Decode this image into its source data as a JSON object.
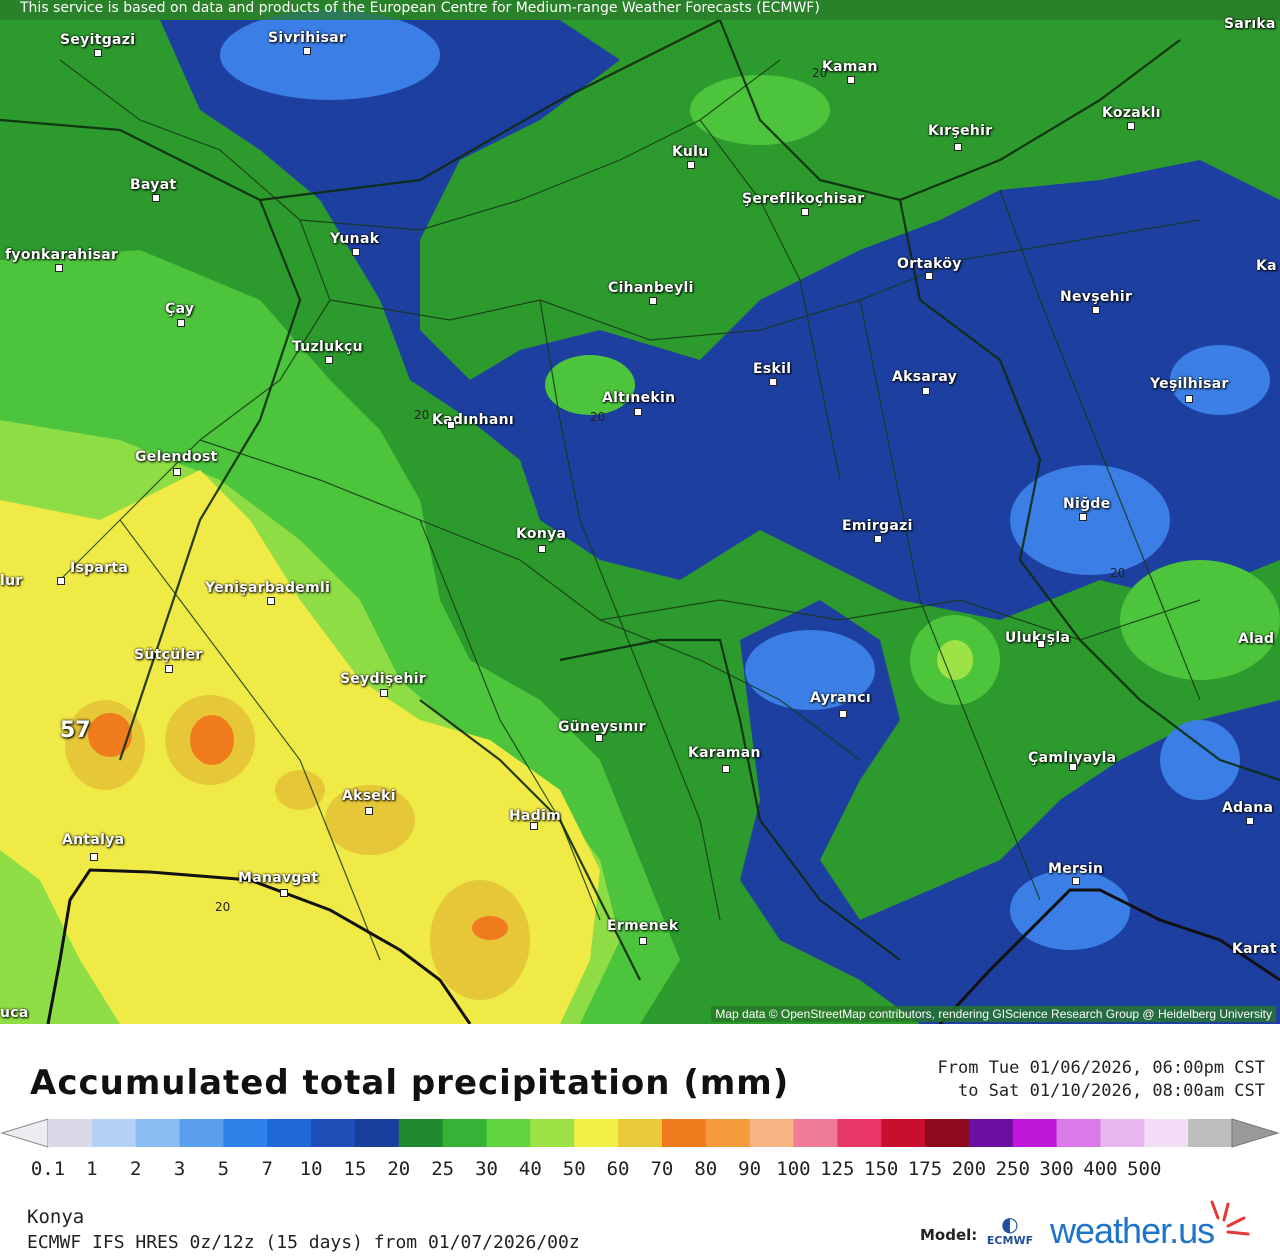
{
  "header": {
    "attribution_top": "This service is based on data and products of the European Centre for Medium-range Weather Forecasts (ECMWF)"
  },
  "map": {
    "attribution_bottom": "Map data © OpenStreetMap contributors, rendering GIScience Research Group @ Heidelberg University",
    "max_value_label": "57",
    "contour_label": "20",
    "cities": [
      {
        "name": "Seyitgazi"
      },
      {
        "name": "Sivrihisar"
      },
      {
        "name": "Kaman"
      },
      {
        "name": "Kozaklı"
      },
      {
        "name": "Kırşehir"
      },
      {
        "name": "Kulu"
      },
      {
        "name": "Bayat"
      },
      {
        "name": "Şereflikoçhisar"
      },
      {
        "name": "Yunak"
      },
      {
        "name": "fyonkarahisar"
      },
      {
        "name": "Ortaköy"
      },
      {
        "name": "Cihanbeyli"
      },
      {
        "name": "Nevşehir"
      },
      {
        "name": "Çay"
      },
      {
        "name": "Tuzlukçu"
      },
      {
        "name": "Eskil"
      },
      {
        "name": "Aksaray"
      },
      {
        "name": "Yeşilhisar"
      },
      {
        "name": "Altınekin"
      },
      {
        "name": "Kadınhanı"
      },
      {
        "name": "Gelendost"
      },
      {
        "name": "Niğde"
      },
      {
        "name": "Konya"
      },
      {
        "name": "Emirgazi"
      },
      {
        "name": "Isparta"
      },
      {
        "name": "Yenişarbademli"
      },
      {
        "name": "Ulukışla"
      },
      {
        "name": "Sütçüler"
      },
      {
        "name": "Seydişehir"
      },
      {
        "name": "Ayrancı"
      },
      {
        "name": "Güneysınır"
      },
      {
        "name": "Karaman"
      },
      {
        "name": "Çamlıyayla"
      },
      {
        "name": "Akseki"
      },
      {
        "name": "Hadim"
      },
      {
        "name": "Antalya"
      },
      {
        "name": "Adana"
      },
      {
        "name": "Manavgat"
      },
      {
        "name": "Mersin"
      },
      {
        "name": "Ermenek"
      },
      {
        "name": "Sarıka"
      },
      {
        "name": "Ka"
      },
      {
        "name": "Alad"
      },
      {
        "name": "Karat"
      },
      {
        "name": "lur"
      },
      {
        "name": "uca"
      }
    ]
  },
  "legend": {
    "title": "Accumulated total precipitation (mm)",
    "period_from": "From Tue 01/06/2026, 06:00pm CST",
    "period_to": "to Sat 01/10/2026, 08:00am CST",
    "ticks": [
      "0.1",
      "1",
      "2",
      "3",
      "5",
      "7",
      "10",
      "15",
      "20",
      "25",
      "30",
      "40",
      "50",
      "60",
      "70",
      "80",
      "90",
      "100",
      "125",
      "150",
      "175",
      "200",
      "250",
      "300",
      "400",
      "500"
    ],
    "colors": [
      "#d9d9e8",
      "#b3d1f5",
      "#8bbcf2",
      "#5aa0ee",
      "#2f82ea",
      "#1f68d8",
      "#1f4fb8",
      "#183f9c",
      "#1f8a2e",
      "#34b337",
      "#5fd43e",
      "#9ee346",
      "#f2ef48",
      "#e8c93a",
      "#f07b1d",
      "#f39a3c",
      "#f6b583",
      "#f07a9a",
      "#e8386a",
      "#c8102e",
      "#8e0a1e",
      "#6a0fa0",
      "#c018d8",
      "#d97ae8",
      "#e9b5f0",
      "#f3dcf5",
      "#bdbdbd"
    ]
  },
  "footer": {
    "location": "Konya",
    "run": "ECMWF IFS HRES 0z/12z (15 days) from 01/07/2026/00z",
    "model_label": "Model:",
    "ecmwf_text": "ECMWF",
    "brand": "weather.us"
  }
}
